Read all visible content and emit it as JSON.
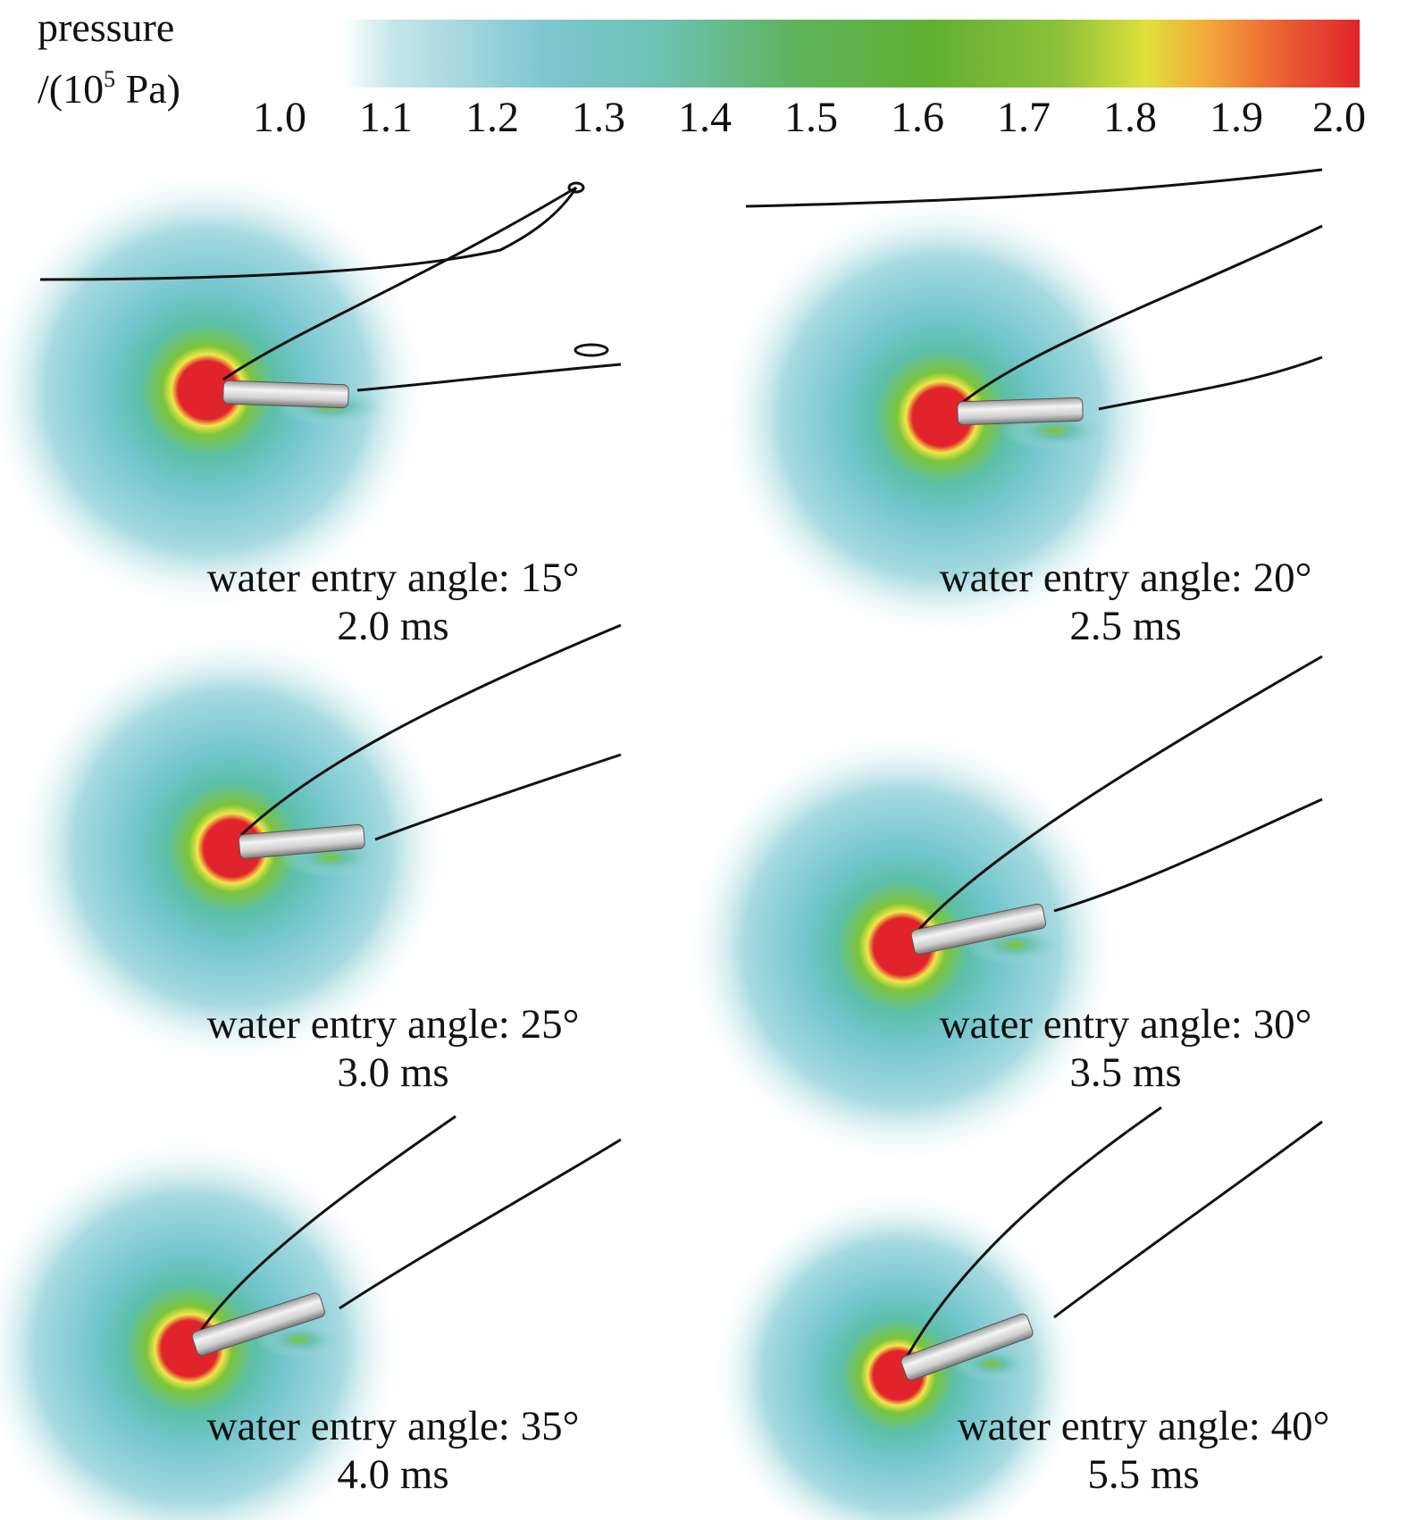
{
  "legend": {
    "title_line1": "pressure",
    "title_line2_prefix": "/(10",
    "title_line2_exponent": "5",
    "title_line2_suffix": " Pa)",
    "ticks": [
      "1.0",
      "1.1",
      "1.2",
      "1.3",
      "1.4",
      "1.5",
      "1.6",
      "1.7",
      "1.8",
      "1.9",
      "2.0"
    ],
    "range": [
      1.0,
      2.0
    ],
    "colors": [
      "#ffffff",
      "#7dc6cf",
      "#5db35a",
      "#60b030",
      "#dfe03a",
      "#f3a83a",
      "#e1242c"
    ]
  },
  "panels": [
    {
      "angle_label": "water entry angle: 15°",
      "time_label": "2.0 ms",
      "angle_deg": 15,
      "time_ms": 2.0
    },
    {
      "angle_label": "water entry angle: 20°",
      "time_label": "2.5 ms",
      "angle_deg": 20,
      "time_ms": 2.5
    },
    {
      "angle_label": "water entry angle: 25°",
      "time_label": "3.0 ms",
      "angle_deg": 25,
      "time_ms": 3.0
    },
    {
      "angle_label": "water entry angle: 30°",
      "time_label": "3.5 ms",
      "angle_deg": 30,
      "time_ms": 3.5
    },
    {
      "angle_label": "water entry angle: 35°",
      "time_label": "4.0 ms",
      "angle_deg": 35,
      "time_ms": 4.0
    },
    {
      "angle_label": "water entry angle: 40°",
      "time_label": "5.5 ms",
      "angle_deg": 40,
      "time_ms": 5.5
    }
  ]
}
